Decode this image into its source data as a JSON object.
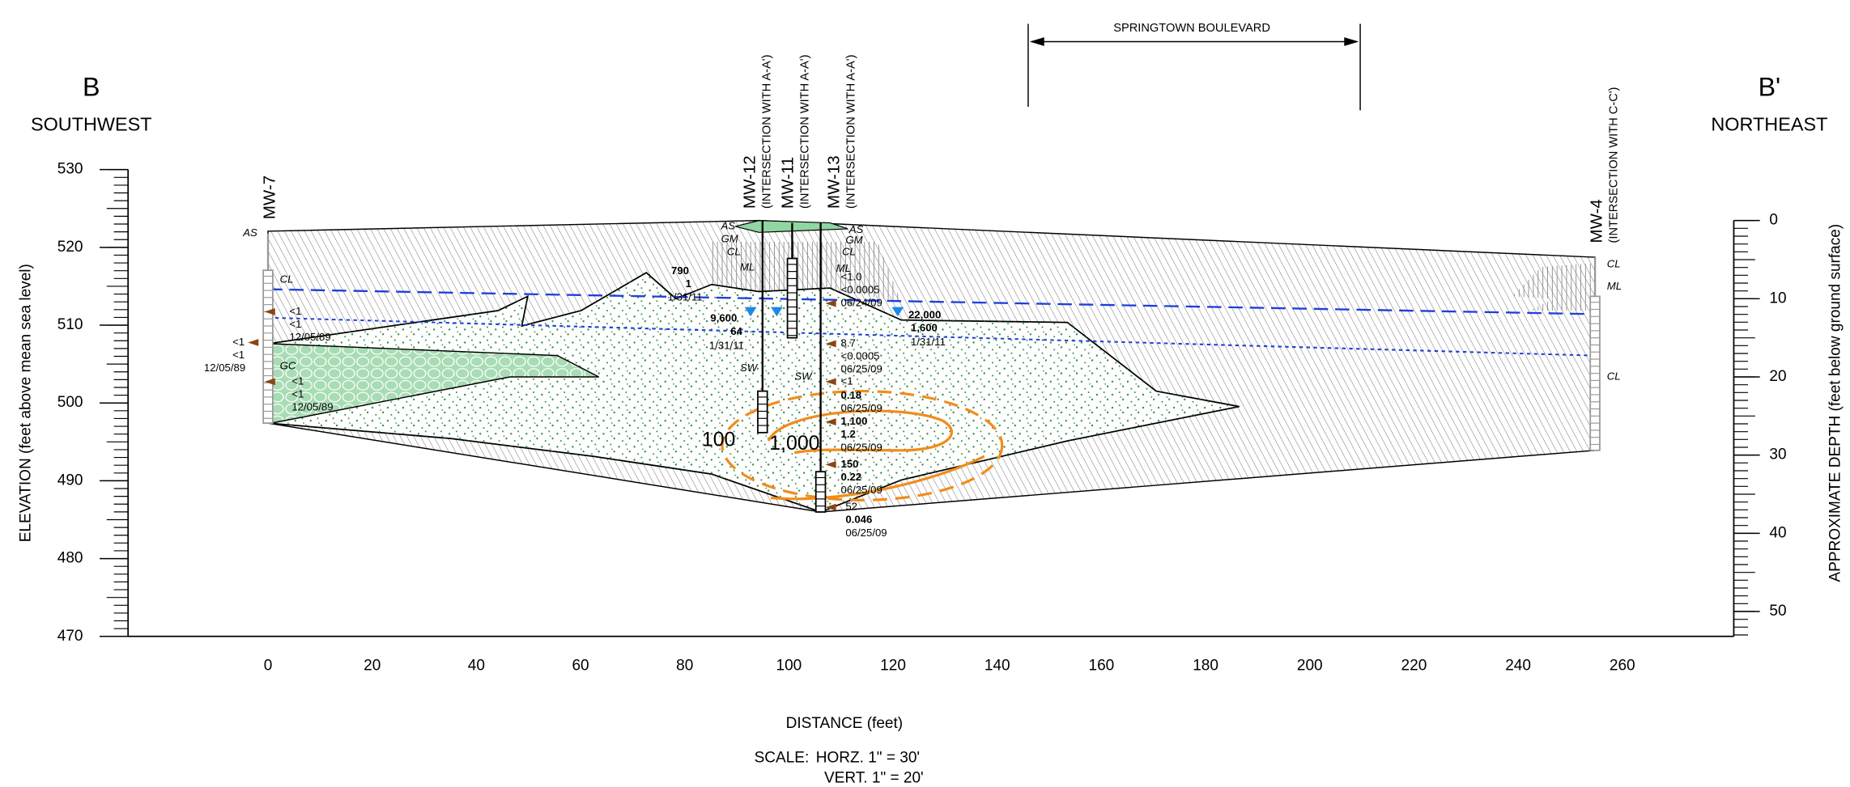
{
  "header": {
    "left_letter": "B",
    "left_direction": "SOUTHWEST",
    "right_letter": "B'",
    "right_direction": "NORTHEAST",
    "street": "SPRINGTOWN BOULEVARD"
  },
  "axes": {
    "left": {
      "label": "ELEVATION (feet above mean sea level)",
      "ticks": [
        530,
        520,
        510,
        500,
        490,
        480,
        470
      ]
    },
    "right": {
      "label": "APPROXIMATE DEPTH (feet below ground surface)",
      "ticks": [
        0,
        10,
        20,
        30,
        40,
        50
      ]
    },
    "bottom": {
      "label": "DISTANCE (feet)",
      "ticks": [
        0,
        20,
        40,
        60,
        80,
        100,
        120,
        140,
        160,
        180,
        200,
        220,
        240,
        260
      ]
    }
  },
  "scale": {
    "caption": "SCALE:",
    "horizontal": "HORZ.   1\" = 30'",
    "vertical": "VERT.   1\" = 20'"
  },
  "wells": [
    {
      "name": "MW-7"
    },
    {
      "name": "MW-12",
      "note": "(INTERSECTION WITH A-A')"
    },
    {
      "name": "MW-11",
      "note": "(INTERSECTION WITH A-A')"
    },
    {
      "name": "MW-13",
      "note": "(INTERSECTION WITH A-A')"
    },
    {
      "name": "MW-4",
      "note": "(INTERSECTION WITH C-C')"
    }
  ],
  "soil_labels": [
    "AS",
    "CL",
    "GC",
    "AS",
    "GM",
    "CL",
    "ML",
    "SW",
    "SW",
    "AS",
    "GM",
    "CL",
    "ML",
    "CL",
    "ML",
    "CL"
  ],
  "contours": [
    "100",
    "1,000"
  ],
  "annotations": [
    "<1",
    "<1",
    "12/05/89",
    "<1",
    "<1",
    "12/05/89",
    "<1",
    "<1",
    "12/05/89",
    "790",
    "1",
    "1/31/11",
    "9,600",
    "64",
    "1/31/11",
    "<1.0",
    "<0.0005",
    "06/24/09",
    "8.7",
    "<0.0005",
    "06/25/09",
    "<1",
    "0.18",
    "06/25/09",
    "1,100",
    "1.2",
    "06/25/09",
    "150",
    "0.22",
    "06/25/09",
    "52",
    "0.046",
    "06/25/09",
    "22,000",
    "1,600",
    "1/31/11"
  ]
}
